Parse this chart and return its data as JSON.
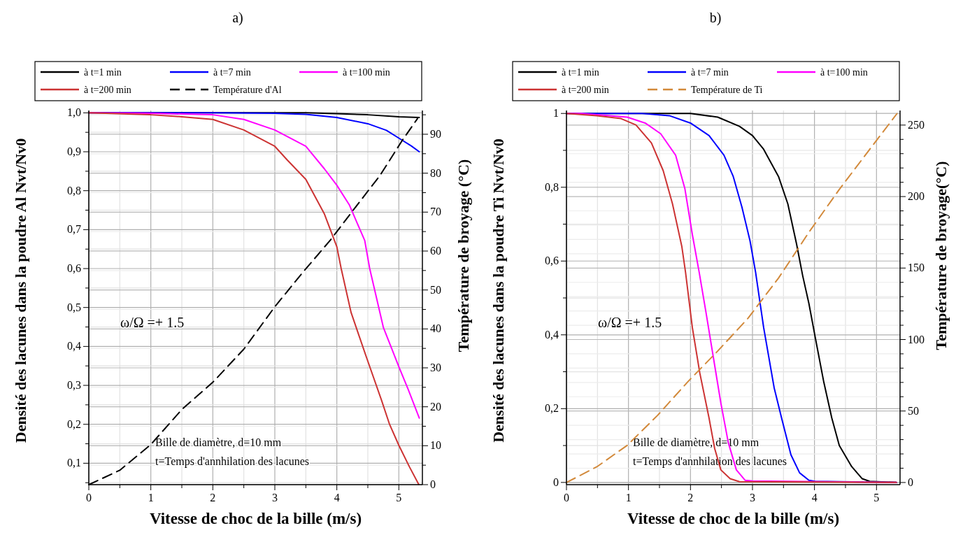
{
  "chart_data": [
    {
      "type": "line",
      "title": "a)",
      "xlabel": "Vitesse de choc de la bille (m/s)",
      "ylabel": "Densité des lacunes dans la poudre Al   Nvt/Nv0",
      "y2label": "Température de broyage (°C)",
      "legend": "top",
      "grid": true,
      "xlim": [
        0,
        5.38
      ],
      "ylim": [
        0.045,
        1.006
      ],
      "y2lim": [
        0,
        96.1
      ],
      "xticks": [
        0,
        {
          "value": 0.5,
          "label": null
        },
        1,
        {
          "value": 1.5,
          "label": null
        },
        2,
        {
          "value": 2.5,
          "label": null
        },
        3,
        {
          "value": 3.5,
          "label": null
        },
        4,
        {
          "value": 4.5,
          "label": null
        },
        5
      ],
      "yticks": [
        {
          "value": 0.05,
          "label": null
        },
        {
          "value": 0.1,
          "label": "0,1"
        },
        {
          "value": 0.15,
          "label": null
        },
        {
          "value": 0.2,
          "label": "0,2"
        },
        {
          "value": 0.25,
          "label": null
        },
        {
          "value": 0.3,
          "label": "0,3"
        },
        {
          "value": 0.35,
          "label": null
        },
        {
          "value": 0.4,
          "label": "0,4"
        },
        {
          "value": 0.45,
          "label": null
        },
        {
          "value": 0.5,
          "label": "0,5"
        },
        {
          "value": 0.55,
          "label": null
        },
        {
          "value": 0.6,
          "label": "0,6"
        },
        {
          "value": 0.65,
          "label": null
        },
        {
          "value": 0.7,
          "label": "0,7"
        },
        {
          "value": 0.75,
          "label": null
        },
        {
          "value": 0.8,
          "label": "0,8"
        },
        {
          "value": 0.85,
          "label": null
        },
        {
          "value": 0.9,
          "label": "0,9"
        },
        {
          "value": 0.95,
          "label": null
        },
        {
          "value": 1.0,
          "label": "1,0"
        }
      ],
      "y2ticks": [
        0,
        {
          "value": 5,
          "label": null
        },
        10,
        {
          "value": 15,
          "label": null
        },
        20,
        {
          "value": 25,
          "label": null
        },
        30,
        {
          "value": 35,
          "label": null
        },
        40,
        {
          "value": 45,
          "label": null
        },
        50,
        {
          "value": 55,
          "label": null
        },
        60,
        {
          "value": 65,
          "label": null
        },
        70,
        {
          "value": 75,
          "label": null
        },
        80,
        {
          "value": 85,
          "label": null
        },
        90,
        {
          "value": 95,
          "label": null
        }
      ],
      "annotations": [
        "ω/Ω =+ 1.5",
        "Bille de diamètre, d=10 mm",
        "t=Temps d'annhilation des lacunes"
      ],
      "series": [
        {
          "name": "à t=1 min",
          "color": "#000000",
          "line_style": "solid",
          "x": [
            0,
            1,
            2,
            3,
            3.5,
            4,
            4.5,
            5,
            5.33
          ],
          "values": [
            1.0,
            1.0,
            1.0,
            1.0,
            1.0,
            0.998,
            0.995,
            0.99,
            0.988
          ]
        },
        {
          "name": "à t=7 min",
          "color": "#0000ff",
          "line_style": "solid",
          "x": [
            0,
            1,
            2,
            3,
            3.5,
            4,
            4.5,
            4.8,
            5,
            5.2,
            5.33
          ],
          "values": [
            1.0,
            1.0,
            1.0,
            0.999,
            0.996,
            0.988,
            0.972,
            0.955,
            0.935,
            0.915,
            0.9
          ]
        },
        {
          "name": "à t=100 min",
          "color": "#ff00ff",
          "line_style": "solid",
          "x": [
            0,
            1,
            2,
            2.5,
            3,
            3.5,
            3.8,
            4,
            4.2,
            4.45,
            4.53,
            4.75,
            5,
            5.15,
            5.33
          ],
          "values": [
            1.0,
            0.999,
            0.995,
            0.983,
            0.956,
            0.914,
            0.856,
            0.814,
            0.764,
            0.672,
            0.6,
            0.449,
            0.348,
            0.29,
            0.216
          ]
        },
        {
          "name": "à t=200 min",
          "color": "#cc3333",
          "line_style": "solid",
          "x": [
            0,
            1,
            1.5,
            2,
            2.5,
            3,
            3.2,
            3.5,
            3.8,
            4,
            4.07,
            4.23,
            4.48,
            4.72,
            4.85,
            5,
            5.17,
            5.32
          ],
          "values": [
            1.0,
            0.995,
            0.99,
            0.983,
            0.956,
            0.914,
            0.879,
            0.829,
            0.74,
            0.656,
            0.6,
            0.487,
            0.371,
            0.262,
            0.2,
            0.146,
            0.091,
            0.046
          ]
        },
        {
          "name": "Température d'Al",
          "color": "#000000",
          "line_style": "dashed",
          "axis": "y2",
          "x": [
            0,
            0.5,
            1,
            1.5,
            2,
            2.5,
            3,
            3.45,
            3.9,
            4.25,
            4.7,
            5.05,
            5.3
          ],
          "values": [
            0,
            3.7,
            10.3,
            19.3,
            26.3,
            34.8,
            45.7,
            54.5,
            62.9,
            70.2,
            79.5,
            88.3,
            94
          ]
        }
      ]
    },
    {
      "type": "line",
      "title": "b)",
      "xlabel": "Vitesse de choc de la bille (m/s)",
      "ylabel": "Densité des lacunes dans la poudre Ti   Nvt/Nv0",
      "y2label": "Température de broyage(°C)",
      "legend": "top",
      "grid": true,
      "xlim": [
        0,
        5.38
      ],
      "ylim": [
        -0.006,
        1.008
      ],
      "y2lim": [
        -1.5,
        260.2
      ],
      "xticks": [
        0,
        {
          "value": 0.5,
          "label": null
        },
        1,
        {
          "value": 1.5,
          "label": null
        },
        2,
        {
          "value": 2.5,
          "label": null
        },
        3,
        {
          "value": 3.5,
          "label": null
        },
        4,
        {
          "value": 4.5,
          "label": null
        },
        5
      ],
      "yticks": [
        0,
        {
          "value": 0.1,
          "label": null
        },
        {
          "value": 0.2,
          "label": "0,2"
        },
        {
          "value": 0.3,
          "label": null
        },
        {
          "value": 0.4,
          "label": "0,4"
        },
        {
          "value": 0.5,
          "label": null
        },
        {
          "value": 0.6,
          "label": "0,6"
        },
        {
          "value": 0.7,
          "label": null
        },
        {
          "value": 0.8,
          "label": "0,8"
        },
        {
          "value": 0.9,
          "label": null
        },
        1
      ],
      "y2ticks": [
        0,
        {
          "value": 10,
          "label": null
        },
        {
          "value": 20,
          "label": null
        },
        {
          "value": 30,
          "label": null
        },
        {
          "value": 40,
          "label": null
        },
        50,
        {
          "value": 60,
          "label": null
        },
        {
          "value": 70,
          "label": null
        },
        {
          "value": 80,
          "label": null
        },
        {
          "value": 90,
          "label": null
        },
        100,
        {
          "value": 110,
          "label": null
        },
        {
          "value": 120,
          "label": null
        },
        {
          "value": 130,
          "label": null
        },
        {
          "value": 140,
          "label": null
        },
        150,
        {
          "value": 160,
          "label": null
        },
        {
          "value": 170,
          "label": null
        },
        {
          "value": 180,
          "label": null
        },
        {
          "value": 190,
          "label": null
        },
        200,
        {
          "value": 210,
          "label": null
        },
        {
          "value": 220,
          "label": null
        },
        {
          "value": 230,
          "label": null
        },
        {
          "value": 240,
          "label": null
        },
        250
      ],
      "annotations": [
        "ω/Ω =+ 1.5",
        "Bille de diamètre, d=10 mm",
        "t=Temps d'annhilation des lacunes"
      ],
      "series": [
        {
          "name": "à t=1 min",
          "color": "#000000",
          "line_style": "solid",
          "x": [
            0,
            1,
            2,
            2.44,
            2.79,
            3,
            3.18,
            3.42,
            3.57,
            3.71,
            3.81,
            3.91,
            4.01,
            4.15,
            4.28,
            4.4,
            4.6,
            4.77,
            4.89,
            5.32
          ],
          "values": [
            1,
            1,
            1,
            0.99,
            0.965,
            0.94,
            0.903,
            0.829,
            0.755,
            0.647,
            0.56,
            0.485,
            0.395,
            0.272,
            0.174,
            0.1,
            0.043,
            0.01,
            0.003,
            0
          ]
        },
        {
          "name": "à t=7 min",
          "color": "#0000ff",
          "line_style": "solid",
          "x": [
            0,
            1.22,
            1.66,
            2,
            2.3,
            2.54,
            2.69,
            2.83,
            2.96,
            3.05,
            3.18,
            3.35,
            3.47,
            3.62,
            3.76,
            3.91,
            4.01,
            5.32
          ],
          "values": [
            1,
            1,
            0.994,
            0.974,
            0.94,
            0.887,
            0.829,
            0.746,
            0.655,
            0.57,
            0.42,
            0.256,
            0.174,
            0.075,
            0.026,
            0.006,
            0.003,
            0
          ]
        },
        {
          "name": "à t=100 min",
          "color": "#ff00ff",
          "line_style": "solid",
          "x": [
            0,
            0.24,
            0.98,
            1.27,
            1.52,
            1.76,
            1.91,
            2.03,
            2.14,
            2.25,
            2.37,
            2.49,
            2.61,
            2.74,
            2.88,
            3.0,
            5.32
          ],
          "values": [
            1,
            1,
            0.99,
            0.974,
            0.945,
            0.887,
            0.796,
            0.672,
            0.57,
            0.461,
            0.338,
            0.215,
            0.108,
            0.034,
            0.006,
            0.004,
            0
          ]
        },
        {
          "name": "à t=200 min",
          "color": "#cc3333",
          "line_style": "solid",
          "x": [
            0,
            0.49,
            0.88,
            1.12,
            1.37,
            1.56,
            1.71,
            1.86,
            1.92,
            2.03,
            2.15,
            2.3,
            2.39,
            2.49,
            2.64,
            2.79,
            5.32
          ],
          "values": [
            1,
            0.994,
            0.986,
            0.969,
            0.92,
            0.845,
            0.755,
            0.64,
            0.57,
            0.42,
            0.297,
            0.174,
            0.092,
            0.034,
            0.01,
            0.002,
            0
          ]
        },
        {
          "name": "Température de Ti",
          "color": "#d2893a",
          "line_style": "dashed",
          "axis": "y2",
          "x": [
            0,
            0.49,
            0.98,
            1.47,
            1.96,
            2.44,
            2.93,
            3.42,
            3.91,
            4.4,
            4.89,
            5.33
          ],
          "values": [
            0,
            11,
            26,
            47,
            70.6,
            92,
            115,
            143,
            175,
            205,
            233,
            258
          ]
        }
      ]
    }
  ]
}
